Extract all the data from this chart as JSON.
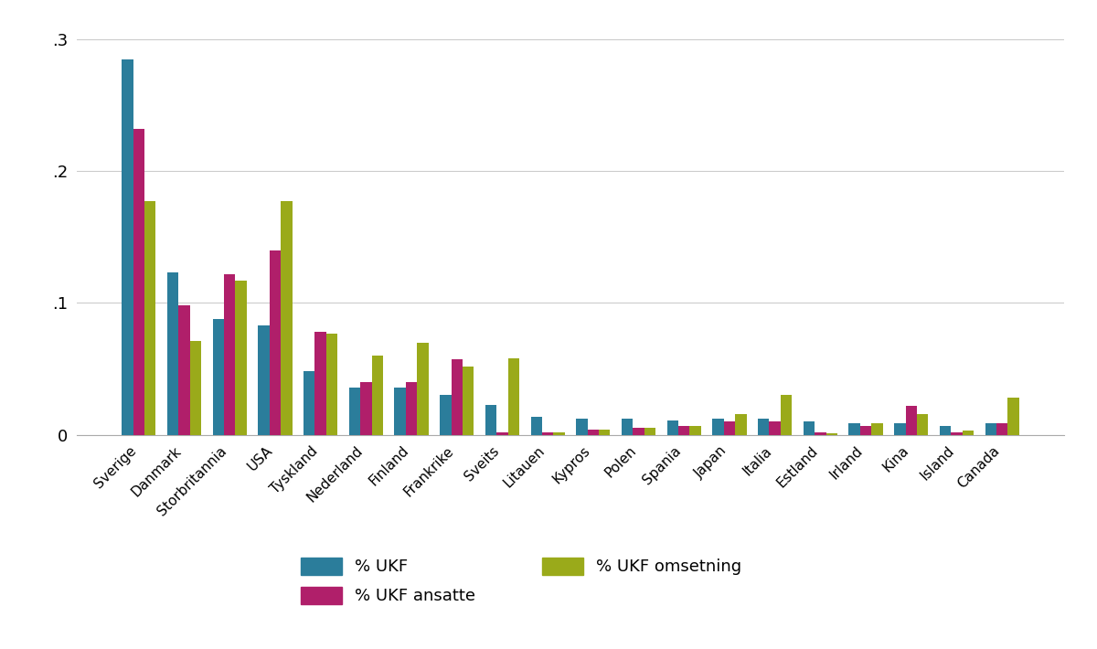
{
  "categories": [
    "Sverige",
    "Danmark",
    "Storbritannia",
    "USA",
    "Tyskland",
    "Nederland",
    "Finland",
    "Frankrike",
    "Sveits",
    "Litauen",
    "Kypros",
    "Polen",
    "Spania",
    "Japan",
    "Italia",
    "Estland",
    "Irland",
    "Kina",
    "Island",
    "Canada"
  ],
  "ukf": [
    0.285,
    0.123,
    0.088,
    0.083,
    0.048,
    0.036,
    0.036,
    0.03,
    0.023,
    0.014,
    0.012,
    0.012,
    0.011,
    0.012,
    0.012,
    0.01,
    0.009,
    0.009,
    0.007,
    0.009
  ],
  "ukf_ansatte": [
    0.232,
    0.098,
    0.122,
    0.14,
    0.078,
    0.04,
    0.04,
    0.057,
    0.002,
    0.002,
    0.004,
    0.005,
    0.007,
    0.01,
    0.01,
    0.002,
    0.007,
    0.022,
    0.002,
    0.009
  ],
  "ukf_omsetning": [
    0.177,
    0.071,
    0.117,
    0.177,
    0.077,
    0.06,
    0.07,
    0.052,
    0.058,
    0.002,
    0.004,
    0.005,
    0.007,
    0.016,
    0.03,
    0.001,
    0.009,
    0.016,
    0.003,
    0.028
  ],
  "color_ukf": "#2b7d9b",
  "color_ansatte": "#b01f6a",
  "color_omsetning": "#9aaa1a",
  "background_color": "#ffffff",
  "ylim": [
    0,
    0.315
  ],
  "yticks": [
    0,
    0.1,
    0.2,
    0.3
  ],
  "ytick_labels": [
    "0",
    ".1",
    ".2",
    ".3"
  ],
  "legend_ukf": "% UKF",
  "legend_omsetning": "% UKF omsetning",
  "legend_ansatte": "% UKF ansatte",
  "bar_width": 0.25,
  "grid_color": "#cccccc"
}
